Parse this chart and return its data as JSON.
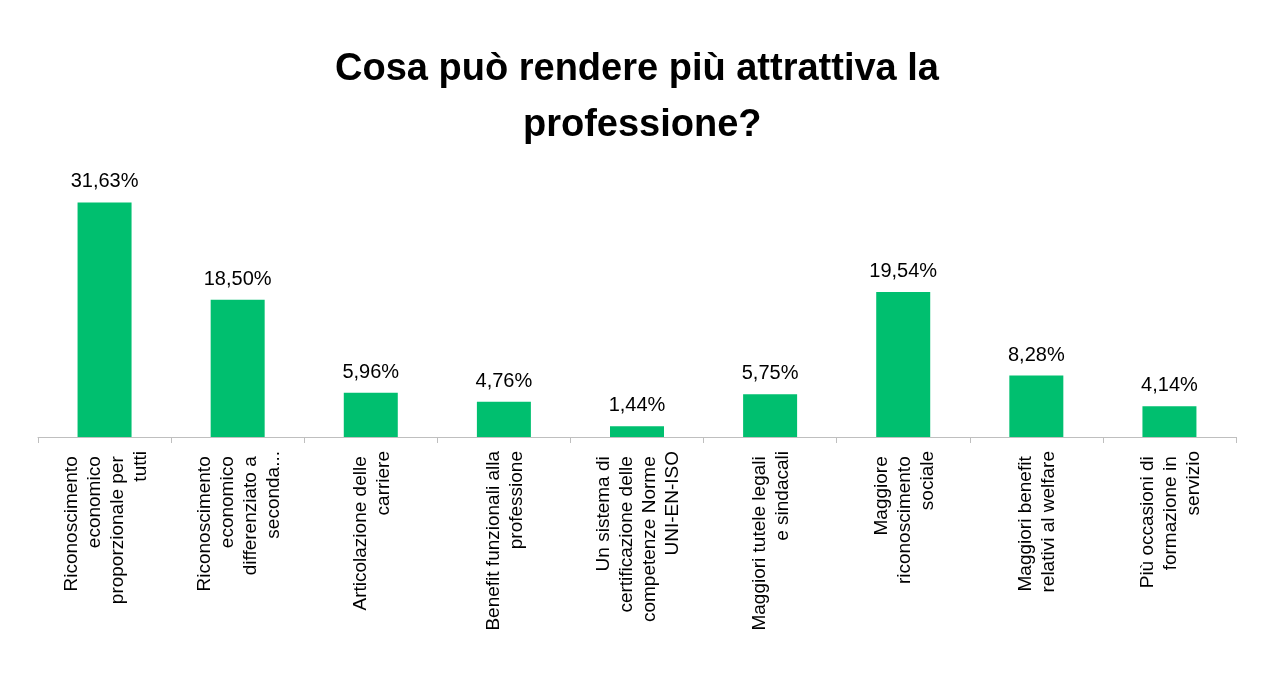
{
  "chart_data": {
    "type": "bar",
    "title": "Cosa può rendere più attrattiva la professione?",
    "categories": [
      "Riconoscimento economico proporzionale per tutti",
      "Riconoscimento economico differenziato a seconda...",
      "Articolazione delle carriere",
      "Benefit funzionali alla professione",
      "Un sistema di certificazione delle competenze Norme UNI-EN-ISO",
      "Maggiori tutele legali e sindacali",
      "Maggiore riconoscimento sociale",
      "Maggiori benefit relativi al welfare",
      "Più occasioni di formazione in servizio"
    ],
    "values": [
      31.63,
      18.5,
      5.96,
      4.76,
      1.44,
      5.75,
      19.54,
      8.28,
      4.14
    ],
    "value_labels": [
      "31,63%",
      "18,50%",
      "5,96%",
      "4,76%",
      "1,44%",
      "5,75%",
      "19,54%",
      "8,28%",
      "4,14%"
    ],
    "color": "#00bf6f"
  }
}
